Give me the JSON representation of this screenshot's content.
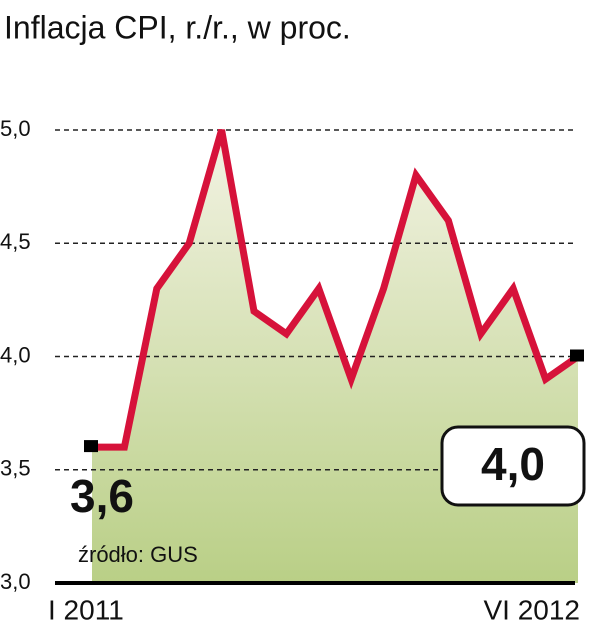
{
  "chart_data": {
    "type": "line",
    "title": "Inflacja CPI, r./r., w proc.",
    "categories": [
      "I 2011",
      null,
      null,
      null,
      null,
      null,
      null,
      null,
      null,
      null,
      null,
      null,
      null,
      null,
      null,
      "VI 2012"
    ],
    "values": [
      3.6,
      3.6,
      4.3,
      4.5,
      5.0,
      4.2,
      4.1,
      4.3,
      3.9,
      4.3,
      4.8,
      4.6,
      4.1,
      4.3,
      3.9,
      4.0
    ],
    "value_labels": [
      "3,6",
      null,
      null,
      null,
      null,
      null,
      null,
      null,
      null,
      null,
      null,
      null,
      null,
      null,
      null,
      "4,0"
    ],
    "color": "#d6123a",
    "ylim": [
      3.0,
      5.0
    ],
    "yticks": [
      {
        "value": 3.0,
        "label": "3,0"
      },
      {
        "value": 3.5,
        "label": "3,5"
      },
      {
        "value": 4.0,
        "label": "4,0"
      },
      {
        "value": 4.5,
        "label": "4,5"
      },
      {
        "value": 5.0,
        "label": "5,0"
      }
    ],
    "grid": true,
    "annotation": "źródło: GUS"
  }
}
